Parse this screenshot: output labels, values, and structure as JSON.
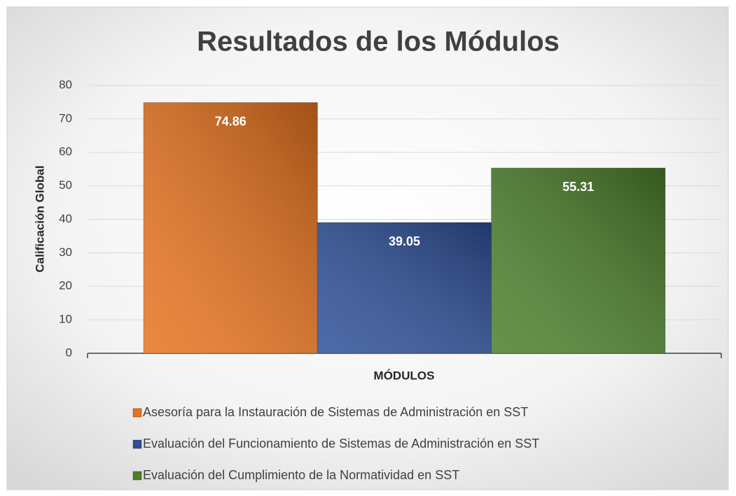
{
  "chart_data": {
    "type": "bar",
    "title": "Resultados de los Módulos",
    "y_axis_label": "Calificación Global",
    "x_axis_label": "MÓDULOS",
    "categories": [
      null
    ],
    "series": [
      {
        "name": "Asesoría para la Instauración de Sistemas de Administración en SST",
        "color": "#e8731f",
        "values": [
          74.86
        ]
      },
      {
        "name": "Evaluación del Funcionamiento de Sistemas de Administración en SST",
        "color": "#2d4f98",
        "values": [
          39.05
        ]
      },
      {
        "name": "Evaluación del Cumplimiento de la Normatividad en SST",
        "color": "#4b7f2b",
        "values": [
          55.31
        ]
      }
    ],
    "ylim": [
      0,
      80
    ],
    "yticks": [
      0,
      10,
      20,
      30,
      40,
      50,
      60,
      70,
      80
    ],
    "grid": true,
    "legend": "bottom"
  }
}
